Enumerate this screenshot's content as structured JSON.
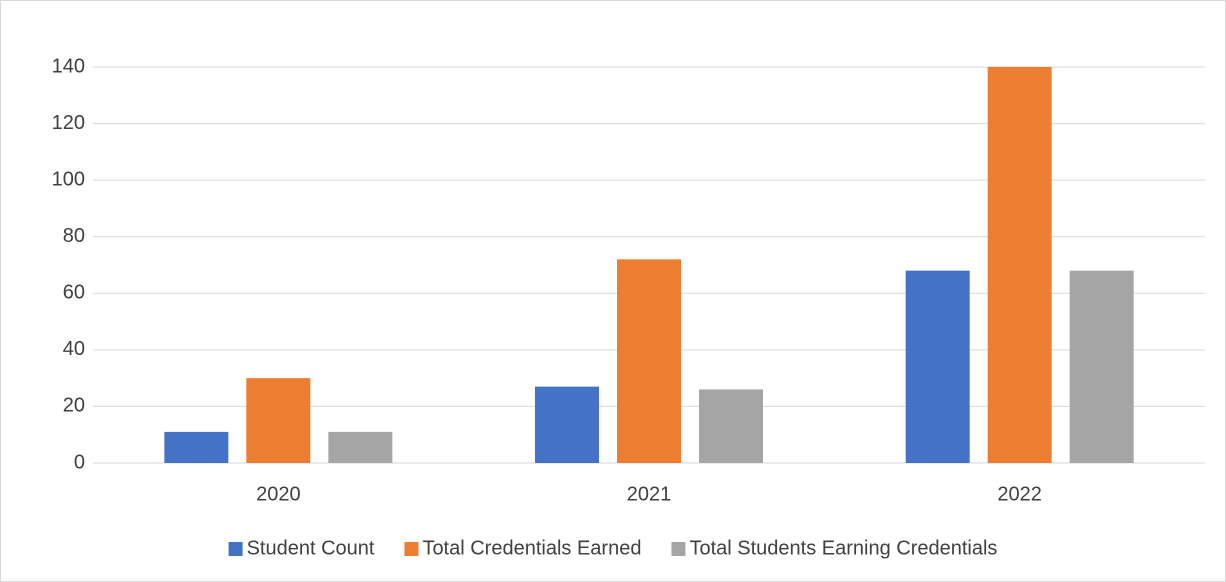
{
  "chart_data": {
    "type": "bar",
    "categories": [
      "2020",
      "2021",
      "2022"
    ],
    "series": [
      {
        "name": "Student Count",
        "color": "#4472c4",
        "values": [
          11,
          27,
          68
        ]
      },
      {
        "name": "Total Credentials Earned",
        "color": "#ed7d31",
        "values": [
          30,
          72,
          140
        ]
      },
      {
        "name": "Total Students Earning Credentials",
        "color": "#a5a5a5",
        "values": [
          11,
          26,
          68
        ]
      }
    ],
    "ylim": [
      0,
      140
    ],
    "yticks": [
      0,
      20,
      40,
      60,
      80,
      100,
      120,
      140
    ],
    "grid": true,
    "legend": "bottom"
  }
}
